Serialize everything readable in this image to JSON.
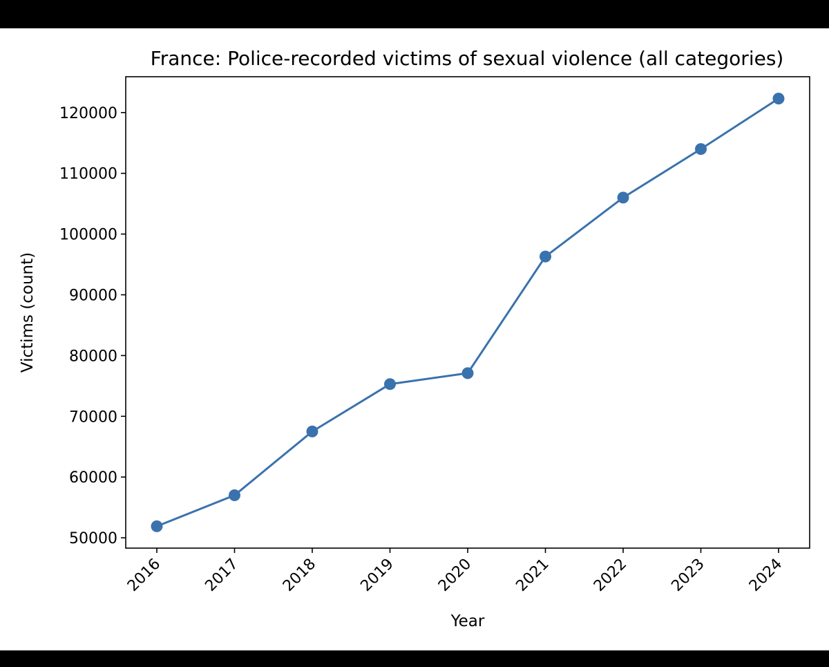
{
  "chart_data": {
    "type": "line",
    "title": "France: Police-recorded victims of sexual violence (all categories)",
    "xlabel": "Year",
    "ylabel": "Victims (count)",
    "x": [
      "2016",
      "2017",
      "2018",
      "2019",
      "2020",
      "2021",
      "2022",
      "2023",
      "2024"
    ],
    "series": [
      {
        "values": [
          51900,
          57000,
          67500,
          75300,
          77100,
          96300,
          106000,
          114000,
          122300
        ]
      }
    ],
    "yticks": [
      50000,
      60000,
      70000,
      80000,
      90000,
      100000,
      110000,
      120000
    ],
    "ylim": [
      48300,
      125900
    ],
    "grid": false,
    "legend": "none",
    "line_color": "#3a72ad",
    "axes_color": "#000000",
    "background_color": "#ffffff"
  }
}
